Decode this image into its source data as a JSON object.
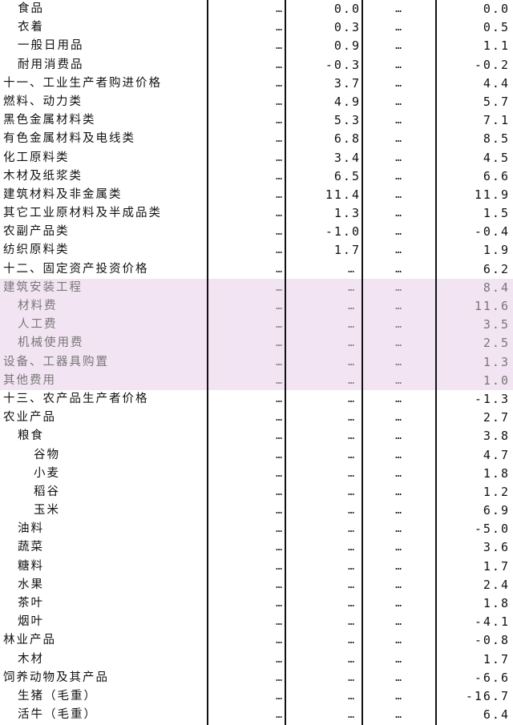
{
  "highlight_color": "#f3e4f3",
  "rows": [
    {
      "label": "食品",
      "indent": 1,
      "c1": "…",
      "c2": "0.0",
      "c3": "…",
      "c4": "0.0"
    },
    {
      "label": "衣着",
      "indent": 1,
      "c1": "…",
      "c2": "0.3",
      "c3": "…",
      "c4": "0.5"
    },
    {
      "label": "一般日用品",
      "indent": 1,
      "c1": "…",
      "c2": "0.9",
      "c3": "…",
      "c4": "1.1"
    },
    {
      "label": "耐用消费品",
      "indent": 1,
      "c1": "…",
      "c2": "-0.3",
      "c3": "…",
      "c4": "-0.2"
    },
    {
      "label": "十一、工业生产者购进价格",
      "indent": 0,
      "c1": "…",
      "c2": "3.7",
      "c3": "…",
      "c4": "4.4"
    },
    {
      "label": "燃料、动力类",
      "indent": 0,
      "c1": "…",
      "c2": "4.9",
      "c3": "…",
      "c4": "5.7"
    },
    {
      "label": "黑色金属材料类",
      "indent": 0,
      "c1": "…",
      "c2": "5.3",
      "c3": "…",
      "c4": "7.1"
    },
    {
      "label": "有色金属材料及电线类",
      "indent": 0,
      "c1": "…",
      "c2": "6.8",
      "c3": "…",
      "c4": "8.5"
    },
    {
      "label": "化工原料类",
      "indent": 0,
      "c1": "…",
      "c2": "3.4",
      "c3": "…",
      "c4": "4.5"
    },
    {
      "label": "木材及纸浆类",
      "indent": 0,
      "c1": "…",
      "c2": "6.5",
      "c3": "…",
      "c4": "6.6"
    },
    {
      "label": "建筑材料及非金属类",
      "indent": 0,
      "c1": "…",
      "c2": "11.4",
      "c3": "…",
      "c4": "11.9"
    },
    {
      "label": "其它工业原材料及半成品类",
      "indent": 0,
      "c1": "…",
      "c2": "1.3",
      "c3": "…",
      "c4": "1.5"
    },
    {
      "label": "农副产品类",
      "indent": 0,
      "c1": "…",
      "c2": "-1.0",
      "c3": "…",
      "c4": "-0.4"
    },
    {
      "label": "纺织原料类",
      "indent": 0,
      "c1": "…",
      "c2": "1.7",
      "c3": "…",
      "c4": "1.9"
    },
    {
      "label": "十二、固定资产投资价格",
      "indent": 0,
      "c1": "…",
      "c2": "…",
      "c3": "…",
      "c4": "6.2"
    },
    {
      "label": "建筑安装工程",
      "indent": 0,
      "c1": "…",
      "c2": "…",
      "c3": "…",
      "c4": "8.4",
      "highlight": true
    },
    {
      "label": "材料费",
      "indent": 1,
      "c1": "…",
      "c2": "…",
      "c3": "…",
      "c4": "11.6",
      "highlight": true
    },
    {
      "label": "人工费",
      "indent": 1,
      "c1": "…",
      "c2": "…",
      "c3": "…",
      "c4": "3.5",
      "highlight": true
    },
    {
      "label": "机械使用费",
      "indent": 1,
      "c1": "…",
      "c2": "…",
      "c3": "…",
      "c4": "2.5",
      "highlight": true
    },
    {
      "label": "设备、工器具购置",
      "indent": 0,
      "c1": "…",
      "c2": "…",
      "c3": "…",
      "c4": "1.3",
      "highlight": true
    },
    {
      "label": "其他费用",
      "indent": 0,
      "c1": "…",
      "c2": "…",
      "c3": "…",
      "c4": "1.0",
      "highlight": true
    },
    {
      "label": "十三、农产品生产者价格",
      "indent": 0,
      "c1": "…",
      "c2": "…",
      "c3": "…",
      "c4": "-1.3"
    },
    {
      "label": "农业产品",
      "indent": 0,
      "c1": "…",
      "c2": "…",
      "c3": "…",
      "c4": "2.7"
    },
    {
      "label": "粮食",
      "indent": 1,
      "c1": "…",
      "c2": "…",
      "c3": "…",
      "c4": "3.8"
    },
    {
      "label": "谷物",
      "indent": 2,
      "c1": "…",
      "c2": "…",
      "c3": "…",
      "c4": "4.7"
    },
    {
      "label": "小麦",
      "indent": 2,
      "c1": "…",
      "c2": "…",
      "c3": "…",
      "c4": "1.8"
    },
    {
      "label": "稻谷",
      "indent": 2,
      "c1": "…",
      "c2": "…",
      "c3": "…",
      "c4": "1.2"
    },
    {
      "label": "玉米",
      "indent": 2,
      "c1": "…",
      "c2": "…",
      "c3": "…",
      "c4": "6.9"
    },
    {
      "label": "油料",
      "indent": 1,
      "c1": "…",
      "c2": "…",
      "c3": "…",
      "c4": "-5.0"
    },
    {
      "label": "蔬菜",
      "indent": 1,
      "c1": "…",
      "c2": "…",
      "c3": "…",
      "c4": "3.6"
    },
    {
      "label": "糖料",
      "indent": 1,
      "c1": "…",
      "c2": "…",
      "c3": "…",
      "c4": "1.7"
    },
    {
      "label": "水果",
      "indent": 1,
      "c1": "…",
      "c2": "…",
      "c3": "…",
      "c4": "2.4"
    },
    {
      "label": "茶叶",
      "indent": 1,
      "c1": "…",
      "c2": "…",
      "c3": "…",
      "c4": "1.8"
    },
    {
      "label": "烟叶",
      "indent": 1,
      "c1": "…",
      "c2": "…",
      "c3": "…",
      "c4": "-4.1"
    },
    {
      "label": "林业产品",
      "indent": 0,
      "c1": "…",
      "c2": "…",
      "c3": "…",
      "c4": "-0.8"
    },
    {
      "label": "木材",
      "indent": 1,
      "c1": "…",
      "c2": "…",
      "c3": "…",
      "c4": "1.7"
    },
    {
      "label": "饲养动物及其产品",
      "indent": 0,
      "c1": "…",
      "c2": "…",
      "c3": "…",
      "c4": "-6.6"
    },
    {
      "label": "生猪（毛重）",
      "indent": 1,
      "c1": "…",
      "c2": "…",
      "c3": "…",
      "c4": "-16.7"
    },
    {
      "label": "活牛（毛重）",
      "indent": 1,
      "c1": "…",
      "c2": "…",
      "c3": "…",
      "c4": "6.4"
    }
  ]
}
